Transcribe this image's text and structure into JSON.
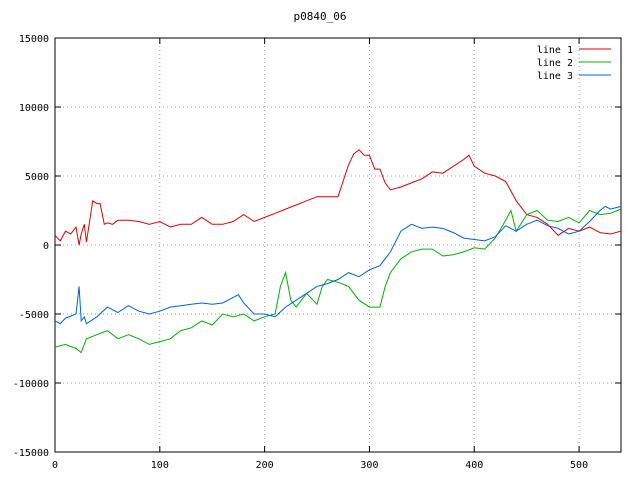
{
  "chart_data": {
    "type": "line",
    "title": "p0840_06",
    "xlabel": "",
    "ylabel": "",
    "xlim": [
      0,
      540
    ],
    "ylim": [
      -15000,
      15000
    ],
    "xticks": [
      0,
      100,
      200,
      300,
      400,
      500
    ],
    "yticks": [
      -15000,
      -10000,
      -5000,
      0,
      5000,
      10000,
      15000
    ],
    "grid": true,
    "legend_position": "top-right",
    "series": [
      {
        "name": "line 1",
        "color": "#e00000",
        "x": [
          0,
          5,
          10,
          15,
          20,
          23,
          25,
          28,
          30,
          33,
          36,
          40,
          43,
          47,
          50,
          55,
          60,
          70,
          80,
          90,
          100,
          110,
          120,
          130,
          140,
          150,
          160,
          170,
          180,
          190,
          200,
          210,
          220,
          230,
          240,
          250,
          260,
          270,
          280,
          285,
          290,
          295,
          300,
          305,
          310,
          315,
          320,
          330,
          340,
          350,
          360,
          370,
          380,
          390,
          395,
          400,
          410,
          420,
          430,
          440,
          450,
          460,
          470,
          480,
          490,
          500,
          510,
          520,
          530,
          540
        ],
        "y": [
          700,
          300,
          1000,
          800,
          1300,
          0,
          800,
          1500,
          200,
          1700,
          3200,
          3000,
          3000,
          1500,
          1600,
          1500,
          1800,
          1800,
          1700,
          1500,
          1700,
          1300,
          1500,
          1500,
          2000,
          1500,
          1500,
          1700,
          2200,
          1700,
          2000,
          2300,
          2600,
          2900,
          3200,
          3500,
          3500,
          3500,
          5800,
          6600,
          6900,
          6500,
          6500,
          5500,
          5500,
          4500,
          4000,
          4200,
          4500,
          4800,
          5300,
          5200,
          5700,
          6200,
          6500,
          5700,
          5200,
          5000,
          4600,
          3200,
          2200,
          2000,
          1500,
          700,
          1200,
          1000,
          1300,
          900,
          800,
          1000
        ]
      },
      {
        "name": "line 2",
        "color": "#00b000",
        "x": [
          0,
          10,
          20,
          25,
          30,
          40,
          50,
          60,
          70,
          80,
          90,
          100,
          110,
          120,
          130,
          140,
          150,
          160,
          170,
          180,
          190,
          200,
          210,
          215,
          220,
          225,
          230,
          240,
          250,
          255,
          260,
          270,
          280,
          290,
          300,
          310,
          315,
          320,
          330,
          340,
          350,
          360,
          370,
          380,
          390,
          400,
          410,
          420,
          430,
          435,
          440,
          450,
          460,
          470,
          480,
          490,
          500,
          510,
          520,
          530,
          540
        ],
        "y": [
          -7400,
          -7200,
          -7500,
          -7800,
          -6800,
          -6500,
          -6200,
          -6800,
          -6500,
          -6800,
          -7200,
          -7000,
          -6800,
          -6200,
          -6000,
          -5500,
          -5800,
          -5000,
          -5200,
          -5000,
          -5500,
          -5200,
          -5000,
          -3000,
          -2000,
          -4000,
          -4500,
          -3500,
          -4300,
          -3000,
          -2500,
          -2700,
          -3000,
          -4000,
          -4500,
          -4500,
          -3000,
          -2000,
          -1000,
          -500,
          -300,
          -300,
          -800,
          -700,
          -500,
          -200,
          -300,
          500,
          1800,
          2500,
          1000,
          2200,
          2500,
          1800,
          1700,
          2000,
          1600,
          2500,
          2200,
          2300,
          2600
        ]
      },
      {
        "name": "line 3",
        "color": "#0060e0",
        "x": [
          0,
          5,
          10,
          20,
          23,
          25,
          28,
          30,
          40,
          50,
          60,
          70,
          80,
          90,
          100,
          110,
          120,
          130,
          140,
          150,
          160,
          170,
          175,
          180,
          190,
          200,
          210,
          220,
          230,
          240,
          250,
          260,
          270,
          280,
          290,
          300,
          310,
          320,
          330,
          340,
          350,
          360,
          370,
          380,
          390,
          400,
          410,
          420,
          430,
          440,
          450,
          460,
          470,
          480,
          490,
          500,
          510,
          520,
          525,
          530,
          540
        ],
        "y": [
          -5500,
          -5700,
          -5300,
          -5000,
          -3000,
          -5500,
          -5200,
          -5700,
          -5200,
          -4500,
          -4900,
          -4400,
          -4800,
          -5000,
          -4800,
          -4500,
          -4400,
          -4300,
          -4200,
          -4300,
          -4200,
          -3800,
          -3600,
          -4200,
          -5000,
          -5000,
          -5200,
          -4500,
          -4000,
          -3500,
          -3000,
          -2800,
          -2500,
          -2000,
          -2300,
          -1800,
          -1500,
          -500,
          1000,
          1500,
          1200,
          1300,
          1200,
          900,
          500,
          400,
          300,
          600,
          1400,
          1000,
          1500,
          1800,
          1400,
          1200,
          800,
          1000,
          1700,
          2500,
          2800,
          2600,
          2800
        ]
      }
    ]
  }
}
